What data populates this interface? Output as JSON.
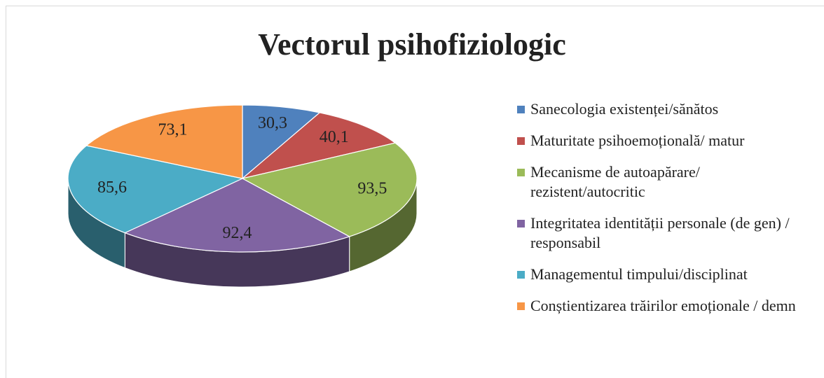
{
  "chart_data": {
    "type": "pie3d",
    "title": "Vectorul psihofiziologic",
    "categories": [
      "Sanecologia existenței/sănătos",
      "Maturitate psihoemoțională/ matur",
      "Mecanisme de autoapărare/ rezistent/autocritic",
      "Integritatea identității personale (de gen) / responsabil",
      "Managementul timpului/disciplinat",
      "Conștientizarea trăirilor emoționale / demn"
    ],
    "values": [
      30.3,
      40.1,
      93.5,
      92.4,
      85.6,
      73.1
    ],
    "value_labels": [
      "30,3",
      "40,1",
      "93,5",
      "92,4",
      "85,6",
      "73,1"
    ],
    "colors": [
      "#4f81bd",
      "#c0504d",
      "#9bbb59",
      "#8064a2",
      "#4bacc6",
      "#f79646"
    ],
    "legend": "right"
  }
}
